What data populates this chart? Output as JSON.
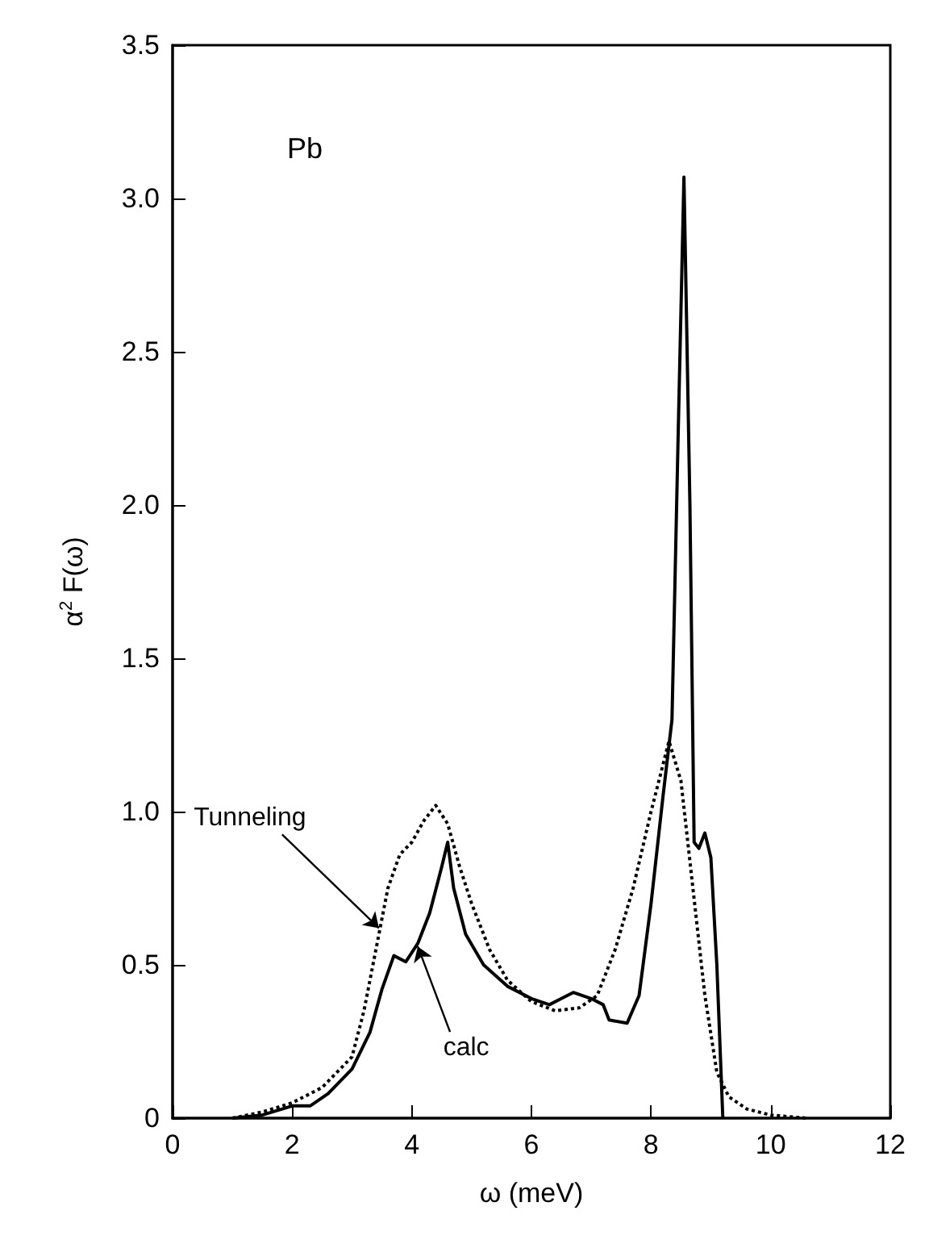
{
  "chart_data": {
    "type": "line",
    "xlabel": "ω (meV)",
    "ylabel": "α$^{2}$ F(ω)",
    "xlim": [
      0,
      12
    ],
    "xticks": [
      0,
      2,
      4,
      6,
      8,
      10,
      12
    ],
    "ylim": [
      0,
      3.5
    ],
    "yticks": [
      0,
      {
        "value": 0.5,
        "label": "0.5"
      },
      {
        "value": 1,
        "label": "1.0"
      },
      {
        "value": 1.5,
        "label": "1.5"
      },
      {
        "value": 2,
        "label": "2.0"
      },
      {
        "value": 2.5,
        "label": "2.5"
      },
      {
        "value": 3,
        "label": "3.0"
      },
      {
        "value": 3.5,
        "label": "3.5"
      }
    ],
    "grid": false,
    "marker": "none",
    "series": [
      {
        "color": "#000000",
        "line_style": "solid",
        "x": [
          1.0,
          1.5,
          2.0,
          2.3,
          2.6,
          3.0,
          3.3,
          3.5,
          3.7,
          3.9,
          4.1,
          4.3,
          4.5,
          4.6,
          4.7,
          4.9,
          5.2,
          5.6,
          6.0,
          6.3,
          6.5,
          6.7,
          7.0,
          7.2,
          7.3,
          7.6,
          7.8,
          8.0,
          8.2,
          8.35,
          8.45,
          8.55,
          8.65,
          8.72,
          8.8,
          8.9,
          9.0,
          9.1,
          9.2
        ],
        "values": [
          0,
          0.01,
          0.04,
          0.04,
          0.08,
          0.16,
          0.28,
          0.42,
          0.53,
          0.51,
          0.57,
          0.67,
          0.82,
          0.9,
          0.75,
          0.6,
          0.5,
          0.43,
          0.39,
          0.37,
          0.39,
          0.41,
          0.39,
          0.37,
          0.32,
          0.31,
          0.4,
          0.7,
          1.05,
          1.3,
          2.2,
          3.07,
          2.0,
          0.9,
          0.88,
          0.93,
          0.85,
          0.5,
          0
        ]
      },
      {
        "color": "#000000",
        "line_style": "dotted",
        "x": [
          1.0,
          1.5,
          2.0,
          2.5,
          3.0,
          3.2,
          3.4,
          3.6,
          3.8,
          4.0,
          4.2,
          4.4,
          4.6,
          4.8,
          5.0,
          5.3,
          5.6,
          6.0,
          6.4,
          6.8,
          7.1,
          7.4,
          7.7,
          8.0,
          8.3,
          8.5,
          8.7,
          8.9,
          9.1,
          9.3,
          9.6,
          10.0,
          10.6
        ],
        "values": [
          0,
          0.02,
          0.05,
          0.1,
          0.2,
          0.35,
          0.55,
          0.75,
          0.86,
          0.9,
          0.97,
          1.02,
          0.96,
          0.82,
          0.7,
          0.55,
          0.45,
          0.38,
          0.35,
          0.36,
          0.4,
          0.55,
          0.75,
          1.0,
          1.23,
          1.1,
          0.75,
          0.4,
          0.15,
          0.07,
          0.03,
          0.01,
          0
        ]
      }
    ],
    "annotations": [
      "Pb",
      {
        "text": "Tunneling",
        "x": 3.45,
        "y": 0.62
      },
      {
        "text": "calc",
        "x": 4.1,
        "y": 0.56
      }
    ]
  }
}
